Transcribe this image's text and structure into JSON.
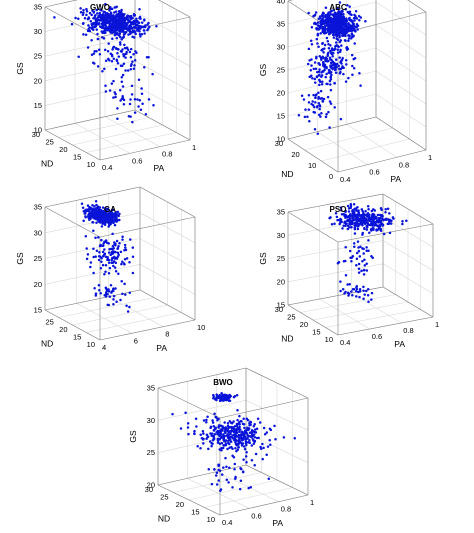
{
  "chart_data": [
    {
      "type": "scatter",
      "subtype": "scatter3d",
      "title": "GWO",
      "xlabel": "PA",
      "ylabel": "ND",
      "zlabel": "GS",
      "xlim": [
        0.4,
        1
      ],
      "xticks": [
        "0.4",
        "0.6",
        "0.8",
        "1"
      ],
      "ylim": [
        10,
        30
      ],
      "yticks": [
        "10",
        "15",
        "20",
        "25",
        "30"
      ],
      "zlim": [
        10,
        35
      ],
      "zticks": [
        "10",
        "15",
        "20",
        "25",
        "30",
        "35"
      ],
      "grid": true,
      "color": "#0a14d8",
      "clusters": [
        {
          "center": [
            0.66,
            19,
            33.4
          ],
          "spread": [
            0.13,
            6.5,
            1.2
          ],
          "count": 600
        },
        {
          "center": [
            0.7,
            19,
            27
          ],
          "spread": [
            0.14,
            6,
            3.5
          ],
          "count": 80
        },
        {
          "center": [
            0.72,
            17,
            19
          ],
          "spread": [
            0.14,
            5.5,
            4.5
          ],
          "count": 45
        }
      ]
    },
    {
      "type": "scatter",
      "subtype": "scatter3d",
      "title": "ABC",
      "xlabel": "PA",
      "ylabel": "ND",
      "zlabel": "GS",
      "xlim": [
        0.4,
        1
      ],
      "xticks": [
        "0.4",
        "0.6",
        "0.8",
        "1"
      ],
      "ylim": [
        0,
        30
      ],
      "yticks": [
        "0",
        "10",
        "20",
        "30"
      ],
      "zlim": [
        10,
        40
      ],
      "zticks": [
        "10",
        "15",
        "20",
        "25",
        "30",
        "35",
        "40"
      ],
      "grid": true,
      "color": "#0a14d8",
      "clusters": [
        {
          "center": [
            0.58,
            17,
            36.5
          ],
          "spread": [
            0.1,
            6,
            2.2
          ],
          "count": 550
        },
        {
          "center": [
            0.55,
            18,
            28
          ],
          "spread": [
            0.12,
            7,
            4.5
          ],
          "count": 180
        },
        {
          "center": [
            0.5,
            20,
            19
          ],
          "spread": [
            0.1,
            6,
            3.5
          ],
          "count": 50
        }
      ]
    },
    {
      "type": "scatter",
      "subtype": "scatter3d",
      "title": "GA",
      "xlabel": "PA",
      "ylabel": "ND",
      "zlabel": "GS",
      "xlim": [
        4,
        10
      ],
      "xticks": [
        "4",
        "6",
        "8",
        "10"
      ],
      "ylim": [
        10,
        30
      ],
      "yticks": [
        "10",
        "15",
        "20",
        "25"
      ],
      "zlim": [
        15,
        35
      ],
      "zticks": [
        "15",
        "20",
        "25",
        "30",
        "35"
      ],
      "grid": true,
      "color": "#0a14d8",
      "clusters": [
        {
          "center": [
            6.2,
            22,
            34.2
          ],
          "spread": [
            0.6,
            4,
            0.8
          ],
          "count": 420
        },
        {
          "center": [
            6.4,
            20,
            27
          ],
          "spread": [
            0.9,
            5,
            3.2
          ],
          "count": 110
        },
        {
          "center": [
            6.2,
            19,
            20
          ],
          "spread": [
            0.9,
            5,
            2.5
          ],
          "count": 40
        }
      ]
    },
    {
      "type": "scatter",
      "subtype": "scatter3d",
      "title": "PSO",
      "xlabel": "PA",
      "ylabel": "ND",
      "zlabel": "GS",
      "xlim": [
        0.4,
        1
      ],
      "xticks": [
        "0.4",
        "0.6",
        "0.8",
        "1"
      ],
      "ylim": [
        10,
        30
      ],
      "yticks": [
        "10",
        "15",
        "20",
        "25",
        "30"
      ],
      "zlim": [
        15,
        35
      ],
      "zticks": [
        "15",
        "20",
        "25",
        "30",
        "35"
      ],
      "grid": true,
      "color": "#0a14d8",
      "clusters": [
        {
          "center": [
            0.72,
            20,
            34.4
          ],
          "spread": [
            0.14,
            6,
            0.5
          ],
          "count": 320
        },
        {
          "center": [
            0.68,
            20,
            26.5
          ],
          "spread": [
            0.09,
            3,
            2.5
          ],
          "count": 40
        },
        {
          "center": [
            0.68,
            20,
            19
          ],
          "spread": [
            0.11,
            4,
            1.8
          ],
          "count": 35
        }
      ]
    },
    {
      "type": "scatter",
      "subtype": "scatter3d",
      "title": "BWO",
      "xlabel": "PA",
      "ylabel": "ND",
      "zlabel": "GS",
      "xlim": [
        0.4,
        1
      ],
      "xticks": [
        "0.4",
        "0.6",
        "0.8",
        "1"
      ],
      "ylim": [
        10,
        30
      ],
      "yticks": [
        "10",
        "15",
        "20",
        "25",
        "30"
      ],
      "zlim": [
        20,
        35
      ],
      "zticks": [
        "20",
        "25",
        "30",
        "35"
      ],
      "grid": true,
      "color": "#0a14d8",
      "clusters": [
        {
          "center": [
            0.64,
            20,
            34.6
          ],
          "spread": [
            0.05,
            1.5,
            0.25
          ],
          "count": 90
        },
        {
          "center": [
            0.7,
            20,
            28.5
          ],
          "spread": [
            0.16,
            6.5,
            1.7
          ],
          "count": 340
        },
        {
          "center": [
            0.66,
            18,
            23.5
          ],
          "spread": [
            0.14,
            5,
            2.2
          ],
          "count": 45
        }
      ]
    }
  ]
}
